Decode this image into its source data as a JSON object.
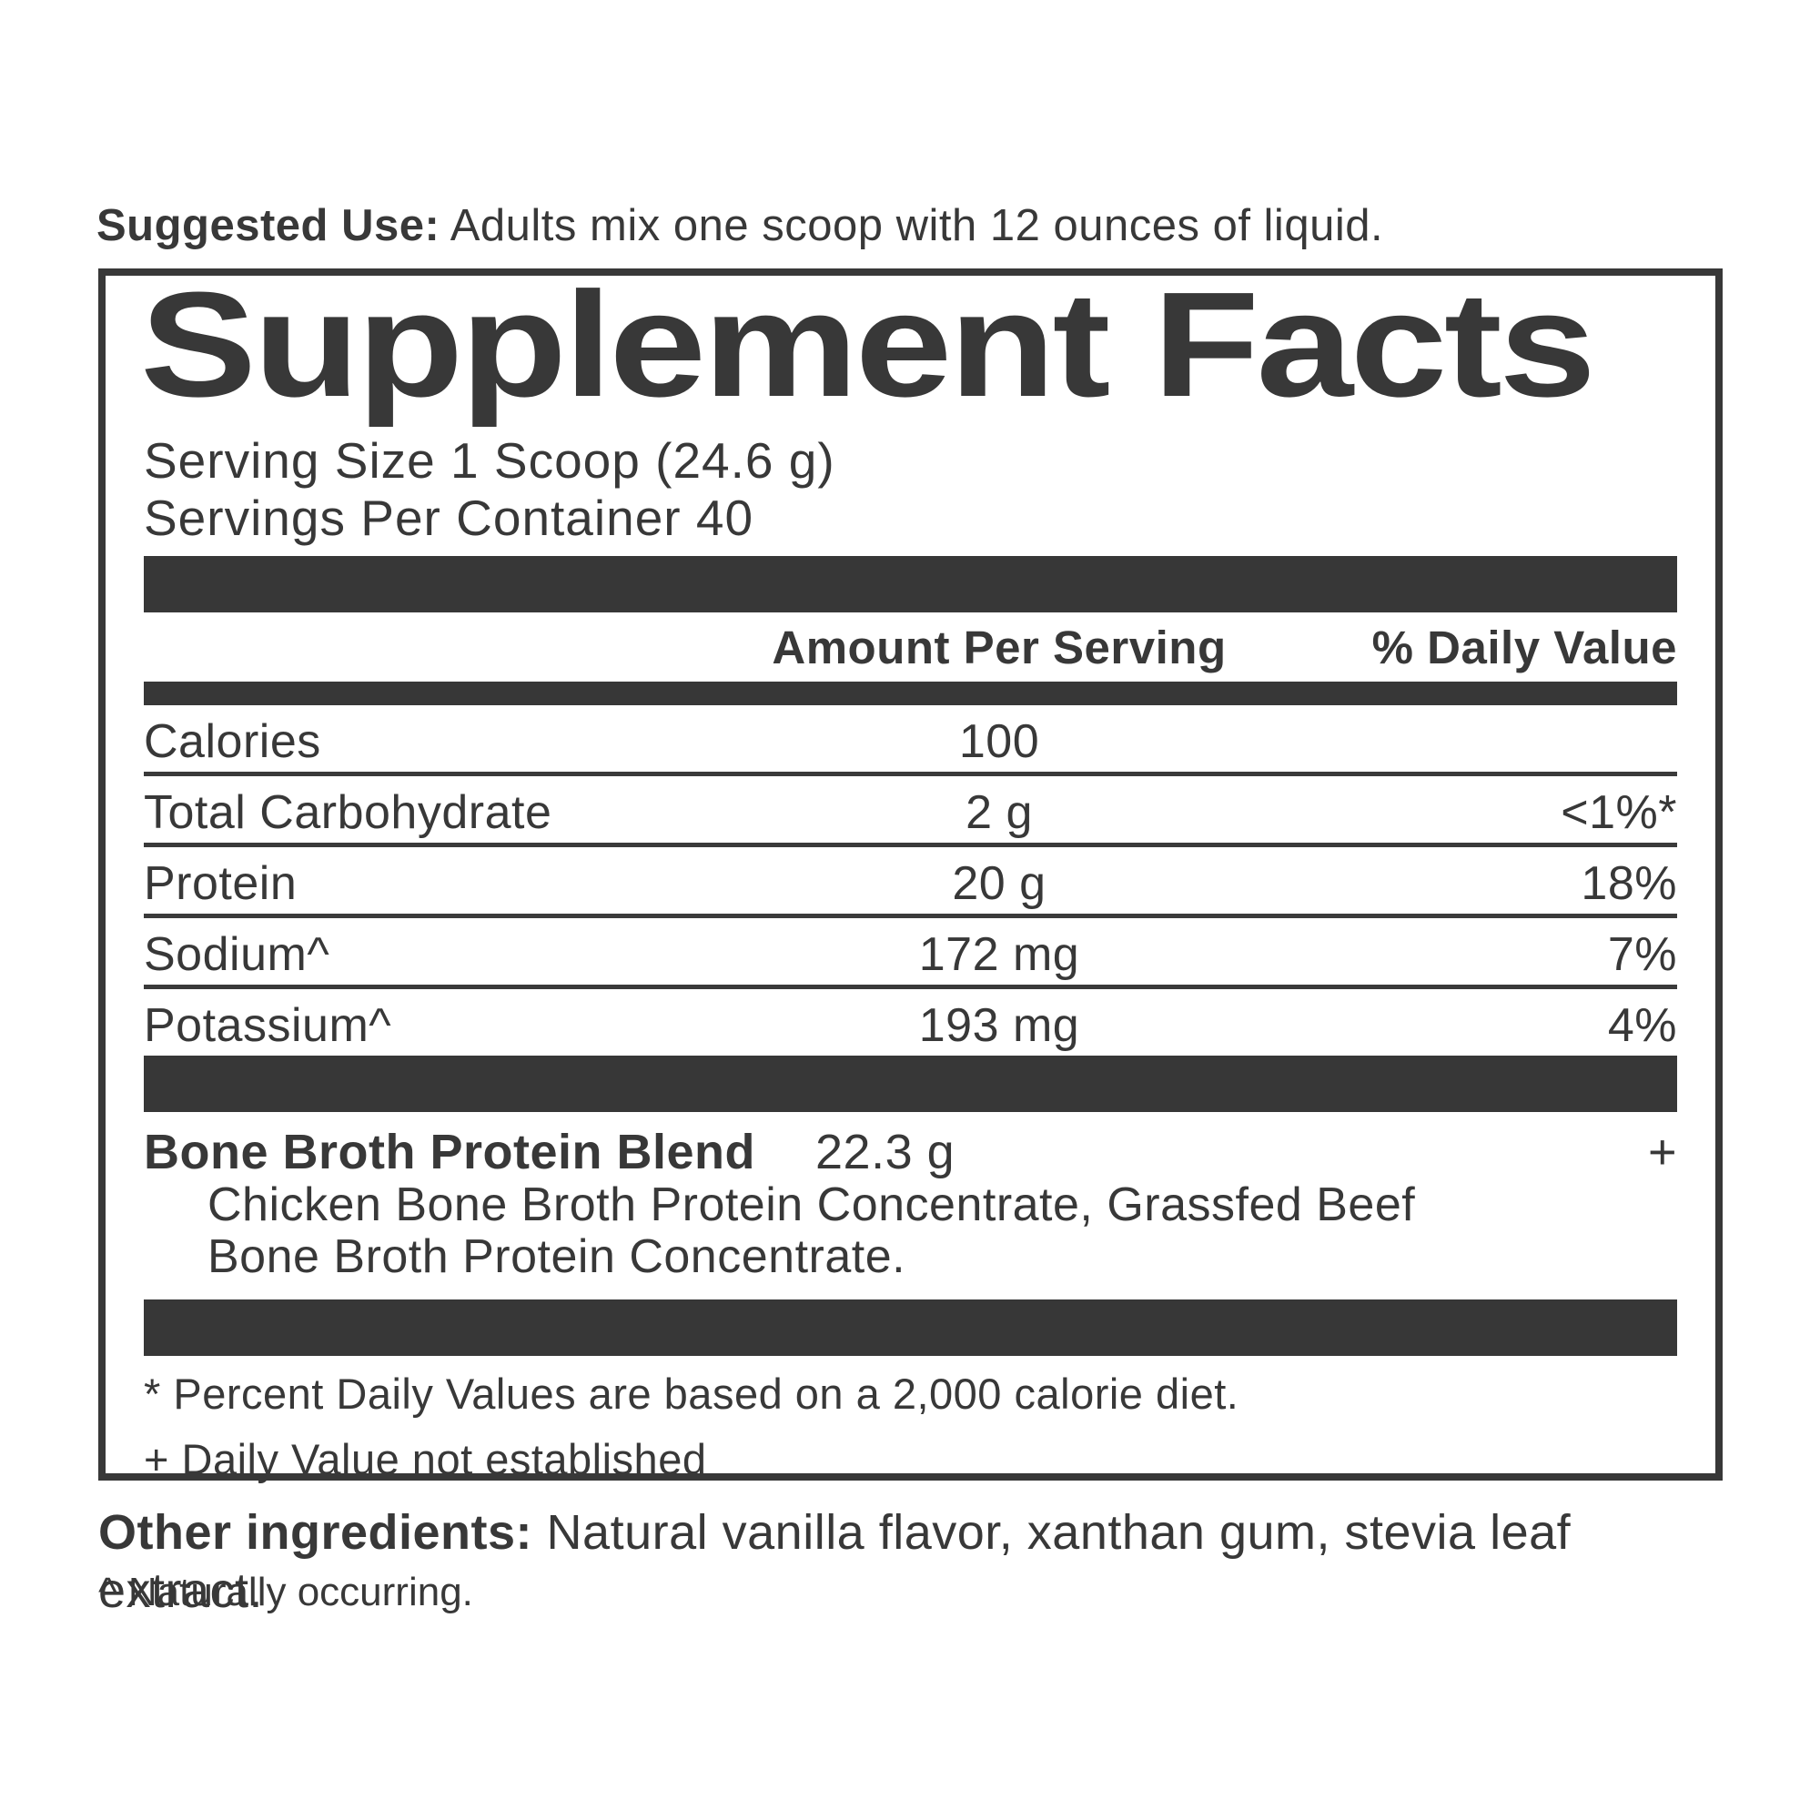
{
  "colors": {
    "ink": "#383838",
    "bar": "#373737",
    "background": "#ffffff"
  },
  "suggested_use": {
    "label": "Suggested Use:",
    "text": " Adults mix one scoop with 12 ounces of liquid."
  },
  "panel": {
    "title": "Supplement Facts",
    "serving_size": "Serving Size 1 Scoop (24.6 g)",
    "servings_per_container": "Servings Per Container 40",
    "columns": {
      "amount": "Amount Per Serving",
      "daily_value": "% Daily Value"
    },
    "rows": [
      {
        "name": "Calories",
        "amount": "100",
        "dv": ""
      },
      {
        "name": "Total Carbohydrate",
        "amount": "2 g",
        "dv": "<1%*"
      },
      {
        "name": "Protein",
        "amount": "20 g",
        "dv": "18%"
      },
      {
        "name": "Sodium^",
        "amount": "172 mg",
        "dv": "7%"
      },
      {
        "name": "Potassium^",
        "amount": "193 mg",
        "dv": "4%"
      }
    ],
    "blend": {
      "name": "Bone Broth Protein Blend",
      "amount": "22.3 g",
      "dv": "+",
      "ingredient_lines": [
        "Chicken Bone Broth Protein Concentrate, Grassfed Beef",
        "Bone Broth Protein Concentrate."
      ]
    },
    "footnotes": [
      "* Percent Daily Values are based on a 2,000 calorie diet.",
      "+ Daily Value not established"
    ]
  },
  "other_ingredients": {
    "label": "Other ingredients:",
    "text": " Natural vanilla flavor, xanthan gum, stevia leaf extract."
  },
  "naturally_occurring": "^ Naturally occurring."
}
